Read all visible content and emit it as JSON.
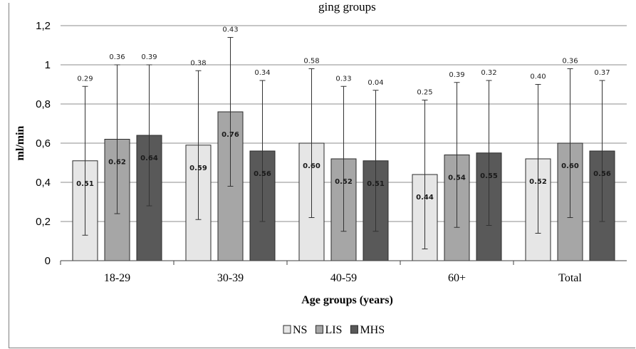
{
  "header_fragment": "ging groups",
  "chart_data": {
    "type": "bar",
    "categories": [
      "18-29",
      "30-39",
      "40-59",
      "60+",
      "Total"
    ],
    "ylabel": "ml/min",
    "xlabel": "Age groups (years)",
    "ylim": [
      0,
      1.2
    ],
    "yticks": [
      "0",
      "0,2",
      "0,4",
      "0,6",
      "0,8",
      "1",
      "1,2"
    ],
    "grid": true,
    "legend_position": "bottom",
    "series": [
      {
        "name": "NS",
        "color": "#e6e6e6",
        "values": [
          0.51,
          0.59,
          0.6,
          0.44,
          0.52
        ],
        "value_labels": [
          "0.51",
          "0.59",
          "0.60",
          "0.44",
          "0.52"
        ],
        "sd": [
          0.29,
          0.38,
          0.58,
          0.25,
          0.4
        ],
        "sd_labels": [
          "0.29",
          "0.38",
          "0.58",
          "0.25",
          "0.40"
        ]
      },
      {
        "name": "LIS",
        "color": "#a6a6a6",
        "values": [
          0.62,
          0.76,
          0.52,
          0.54,
          0.6
        ],
        "value_labels": [
          "0.62",
          "0.76",
          "0.52",
          "0.54",
          "0.60"
        ],
        "sd": [
          0.36,
          0.43,
          0.33,
          0.39,
          0.36
        ],
        "sd_labels": [
          "0.36",
          "0.43",
          "0.33",
          "0.39",
          "0.36"
        ]
      },
      {
        "name": "MHS",
        "color": "#595959",
        "values": [
          0.64,
          0.56,
          0.51,
          0.55,
          0.56
        ],
        "value_labels": [
          "0.64",
          "0.56",
          "0.51",
          "0.55",
          "0.56"
        ],
        "sd": [
          0.39,
          0.34,
          0.04,
          0.32,
          0.37
        ],
        "sd_labels": [
          "0.39",
          "0.34",
          "0.04",
          "0.32",
          "0.37"
        ]
      }
    ],
    "error_bar_ranges": [
      [
        [
          0.13,
          0.89
        ],
        [
          0.24,
          1.0
        ],
        [
          0.28,
          1.0
        ]
      ],
      [
        [
          0.21,
          0.97
        ],
        [
          0.38,
          1.14
        ],
        [
          0.2,
          0.92
        ]
      ],
      [
        [
          0.22,
          0.98
        ],
        [
          0.15,
          0.89
        ],
        [
          0.15,
          0.87
        ]
      ],
      [
        [
          0.06,
          0.82
        ],
        [
          0.17,
          0.91
        ],
        [
          0.18,
          0.92
        ]
      ],
      [
        [
          0.14,
          0.9
        ],
        [
          0.22,
          0.98
        ],
        [
          0.2,
          0.92
        ]
      ]
    ]
  }
}
